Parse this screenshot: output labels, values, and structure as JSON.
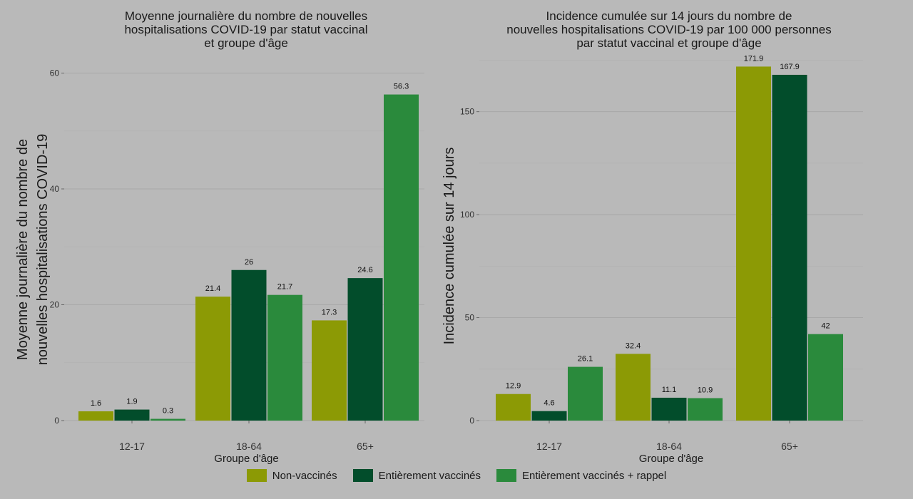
{
  "chart_data": [
    {
      "type": "bar",
      "title": [
        "Moyenne journalière du nombre de nouvelles",
        "hospitalisations COVID-19 par statut vaccinal",
        "et groupe d'âge"
      ],
      "xlabel": "Groupe d'âge",
      "ylabel": [
        "Moyenne journalière du nombre de",
        "nouvelles hospitalisations COVID-19"
      ],
      "categories": [
        "12-17",
        "18-64",
        "65+"
      ],
      "ylim": [
        0,
        64
      ],
      "yticks": [
        0,
        20,
        40,
        60
      ],
      "series": [
        {
          "name": "Non-vaccinés",
          "color": "#8c9a05",
          "values": [
            1.6,
            21.4,
            17.3
          ],
          "labels": [
            "1.6",
            "21.4",
            "17.3"
          ]
        },
        {
          "name": "Entièrement vaccinés",
          "color": "#024d2b",
          "values": [
            1.9,
            26,
            24.6
          ],
          "labels": [
            "1.9",
            "26",
            "24.6"
          ]
        },
        {
          "name": "Entièrement vaccinés + rappel",
          "color": "#2a8a3c",
          "values": [
            0.3,
            21.7,
            56.3
          ],
          "labels": [
            "0.3",
            "21.7",
            "56.3"
          ]
        }
      ],
      "grid": true
    },
    {
      "type": "bar",
      "title": [
        "Incidence cumulée sur 14 jours du nombre de",
        "nouvelles hospitalisations COVID-19 par 100 000 personnes",
        "par statut vaccinal et groupe d'âge"
      ],
      "xlabel": "Groupe d'âge",
      "ylabel": [
        "Incidence cumulée sur 14 jours"
      ],
      "categories": [
        "12-17",
        "18-64",
        "65+"
      ],
      "ylim": [
        0,
        180
      ],
      "yticks": [
        0,
        50,
        100,
        150
      ],
      "series": [
        {
          "name": "Non-vaccinés",
          "color": "#8c9a05",
          "values": [
            12.9,
            32.4,
            171.9
          ],
          "labels": [
            "12.9",
            "32.4",
            "171.9"
          ]
        },
        {
          "name": "Entièrement vaccinés",
          "color": "#024d2b",
          "values": [
            4.6,
            11.1,
            167.9
          ],
          "labels": [
            "4.6",
            "11.1",
            "167.9"
          ]
        },
        {
          "name": "Entièrement vaccinés + rappel",
          "color": "#2a8a3c",
          "values": [
            26.1,
            10.9,
            42
          ],
          "labels": [
            "26.1",
            "10.9",
            "42"
          ]
        }
      ],
      "grid": true
    }
  ],
  "legend": {
    "placement": "bottom",
    "items": [
      {
        "label": "Non-vaccinés",
        "color": "#8c9a05"
      },
      {
        "label": "Entièrement vaccinés",
        "color": "#024d2b"
      },
      {
        "label": "Entièrement vaccinés + rappel",
        "color": "#2a8a3c"
      }
    ]
  }
}
